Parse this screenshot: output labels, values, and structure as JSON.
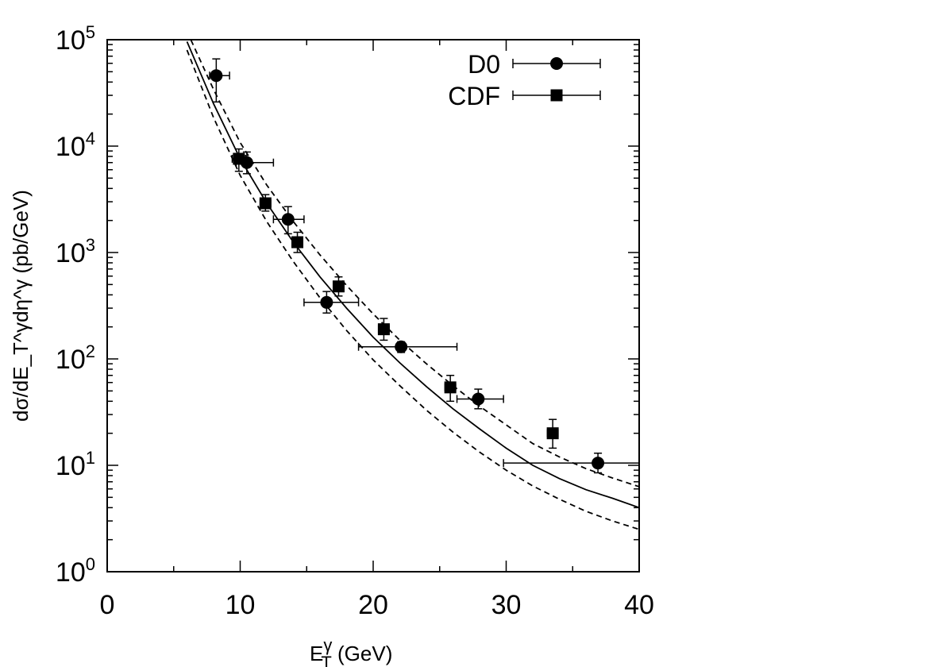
{
  "chart_data": {
    "type": "scatter",
    "xlim": [
      0,
      40
    ],
    "ylim": [
      1,
      100000
    ],
    "yscale": "log",
    "grid": false,
    "legend_position": "top-right",
    "xlabel": {
      "main": "E",
      "sup": "γ",
      "sub": "T",
      "rest": " (GeV)"
    },
    "ylabel": "dσ/dE_T^γdη^γ (pb/GeV)",
    "x_ticks": [
      {
        "value": 0,
        "label": "0"
      },
      {
        "value": 10,
        "label": "10"
      },
      {
        "value": 20,
        "label": "20"
      },
      {
        "value": 30,
        "label": "30"
      },
      {
        "value": 40,
        "label": "40"
      }
    ],
    "y_ticks": [
      {
        "value": 1,
        "base": "10",
        "exp": "0"
      },
      {
        "value": 10,
        "base": "10",
        "exp": "1"
      },
      {
        "value": 100,
        "base": "10",
        "exp": "2"
      },
      {
        "value": 1000,
        "base": "10",
        "exp": "3"
      },
      {
        "value": 10000,
        "base": "10",
        "exp": "4"
      },
      {
        "value": 100000,
        "base": "10",
        "exp": "5"
      }
    ],
    "series": [
      {
        "name": "D0",
        "marker": "circle",
        "points": [
          {
            "x": 8.2,
            "y": 46000,
            "xerr": [
              7.7,
              9.2
            ],
            "yerr": [
              26000,
              66000
            ]
          },
          {
            "x": 10.5,
            "y": 7000,
            "xerr": [
              9.7,
              12.5
            ],
            "yerr": [
              5500,
              8800
            ]
          },
          {
            "x": 13.6,
            "y": 2050,
            "xerr": [
              12.5,
              14.8
            ],
            "yerr": [
              1500,
              2700
            ]
          },
          {
            "x": 16.5,
            "y": 340,
            "xerr": [
              14.8,
              18.9
            ],
            "yerr": [
              270,
              430
            ]
          },
          {
            "x": 22.1,
            "y": 130,
            "xerr": [
              18.9,
              26.3
            ],
            "yerr": [
              115,
              145
            ]
          },
          {
            "x": 27.9,
            "y": 42,
            "xerr": [
              26.3,
              29.8
            ],
            "yerr": [
              34,
              52
            ]
          },
          {
            "x": 36.9,
            "y": 10.5,
            "xerr": [
              29.8,
              40
            ],
            "yerr": [
              8.5,
              13
            ]
          }
        ]
      },
      {
        "name": "CDF",
        "marker": "square",
        "points": [
          {
            "x": 9.9,
            "y": 7600,
            "xerr": [
              9.4,
              10.4
            ],
            "yerr": [
              5800,
              9400
            ]
          },
          {
            "x": 11.9,
            "y": 2900,
            "xerr": [
              11.5,
              12.3
            ],
            "yerr": [
              2450,
              3500
            ]
          },
          {
            "x": 14.3,
            "y": 1250,
            "xerr": [
              13.9,
              14.7
            ],
            "yerr": [
              1000,
              1550
            ]
          },
          {
            "x": 17.4,
            "y": 480,
            "xerr": [
              17.0,
              17.8
            ],
            "yerr": [
              390,
              590
            ]
          },
          {
            "x": 20.8,
            "y": 190,
            "xerr": [
              20.4,
              21.2
            ],
            "yerr": [
              150,
              240
            ]
          },
          {
            "x": 25.8,
            "y": 54,
            "xerr": [
              25.4,
              26.2
            ],
            "yerr": [
              40,
              70
            ]
          },
          {
            "x": 33.5,
            "y": 20,
            "xerr": [
              33.1,
              33.9
            ],
            "yerr": [
              14.5,
              27
            ]
          }
        ]
      }
    ],
    "curves": [
      {
        "style": "solid",
        "points": [
          [
            6,
            96000
          ],
          [
            8,
            25000
          ],
          [
            10,
            7600
          ],
          [
            12,
            2900
          ],
          [
            14,
            1250
          ],
          [
            16,
            590
          ],
          [
            18,
            300
          ],
          [
            20,
            160
          ],
          [
            22,
            92
          ],
          [
            24,
            55
          ],
          [
            26,
            34
          ],
          [
            28,
            22
          ],
          [
            30,
            14.5
          ],
          [
            32,
            10
          ],
          [
            34,
            7.5
          ],
          [
            36,
            5.9
          ],
          [
            38,
            4.9
          ],
          [
            40,
            4.0
          ]
        ]
      },
      {
        "style": "dashed",
        "points": [
          [
            6,
            120000
          ],
          [
            8,
            34000
          ],
          [
            10,
            10800
          ],
          [
            12,
            4300
          ],
          [
            14,
            1950
          ],
          [
            16,
            950
          ],
          [
            18,
            490
          ],
          [
            20,
            265
          ],
          [
            22,
            150
          ],
          [
            24,
            90
          ],
          [
            26,
            56
          ],
          [
            28,
            36
          ],
          [
            30,
            24
          ],
          [
            32,
            16
          ],
          [
            34,
            12
          ],
          [
            36,
            9.3
          ],
          [
            38,
            7.6
          ],
          [
            40,
            6.3
          ]
        ]
      },
      {
        "style": "dashed",
        "points": [
          [
            6,
            80000
          ],
          [
            8,
            18500
          ],
          [
            10,
            5300
          ],
          [
            12,
            1950
          ],
          [
            14,
            820
          ],
          [
            16,
            375
          ],
          [
            18,
            185
          ],
          [
            20,
            98
          ],
          [
            22,
            56
          ],
          [
            24,
            33
          ],
          [
            26,
            20.5
          ],
          [
            28,
            13.3
          ],
          [
            30,
            9
          ],
          [
            32,
            6.4
          ],
          [
            34,
            4.8
          ],
          [
            36,
            3.7
          ],
          [
            38,
            3.0
          ],
          [
            40,
            2.5
          ]
        ]
      }
    ]
  }
}
